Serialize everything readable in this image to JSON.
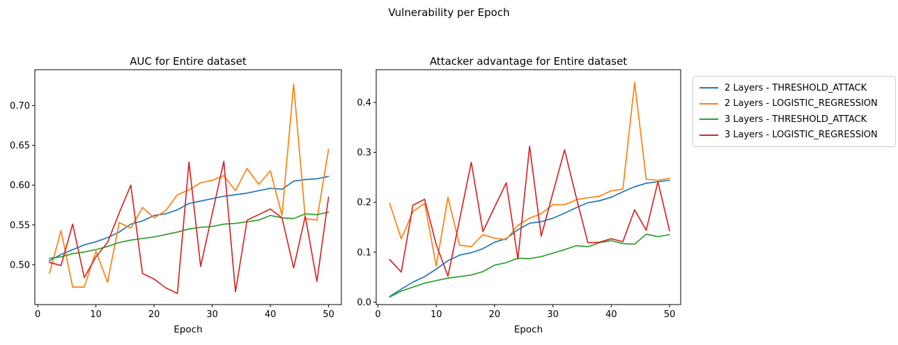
{
  "figure": {
    "suptitle": "Vulnerability per Epoch"
  },
  "colors": {
    "blue": "#1f77b4",
    "orange": "#ff7f0e",
    "green": "#2ca02c",
    "red": "#d62728",
    "axes": "#000000",
    "legend_border": "#cccccc"
  },
  "legend": {
    "entries": [
      {
        "label": "2 Layers - THRESHOLD_ATTACK",
        "color": "#1f77b4"
      },
      {
        "label": "2 Layers - LOGISTIC_REGRESSION",
        "color": "#ff7f0e"
      },
      {
        "label": "3 Layers - THRESHOLD_ATTACK",
        "color": "#2ca02c"
      },
      {
        "label": "3 Layers - LOGISTIC_REGRESSION",
        "color": "#d62728"
      }
    ]
  },
  "chart_data": [
    {
      "type": "line",
      "title": "AUC for Entire dataset",
      "xlabel": "Epoch",
      "ylabel": "",
      "grid": false,
      "legend_position": "outside-right-of-second-plot",
      "x": [
        2,
        4,
        6,
        8,
        10,
        12,
        14,
        16,
        18,
        20,
        22,
        24,
        26,
        28,
        30,
        32,
        34,
        36,
        38,
        40,
        42,
        44,
        46,
        48,
        50
      ],
      "xlim": [
        -0.5,
        52.2
      ],
      "ylim": [
        0.45,
        0.745
      ],
      "xticks": {
        "values": [
          0,
          10,
          20,
          30,
          40,
          50
        ],
        "labels": [
          "0",
          "10",
          "20",
          "30",
          "40",
          "50"
        ]
      },
      "yticks": {
        "values": [
          0.5,
          0.55,
          0.6,
          0.65,
          0.7
        ],
        "labels": [
          "0.50",
          "0.55",
          "0.60",
          "0.65",
          "0.70"
        ]
      },
      "series": [
        {
          "name": "2 Layers - THRESHOLD_ATTACK",
          "color": "#1f77b4",
          "values": [
            0.505,
            0.513,
            0.519,
            0.525,
            0.529,
            0.534,
            0.541,
            0.551,
            0.555,
            0.562,
            0.564,
            0.569,
            0.577,
            0.58,
            0.583,
            0.586,
            0.588,
            0.59,
            0.593,
            0.596,
            0.595,
            0.605,
            0.607,
            0.608,
            0.611
          ]
        },
        {
          "name": "2 Layers - LOGISTIC_REGRESSION",
          "color": "#ff7f0e",
          "values": [
            0.489,
            0.543,
            0.472,
            0.472,
            0.517,
            0.478,
            0.553,
            0.546,
            0.572,
            0.559,
            0.568,
            0.588,
            0.594,
            0.603,
            0.606,
            0.612,
            0.593,
            0.621,
            0.601,
            0.618,
            0.562,
            0.727,
            0.558,
            0.556,
            0.645
          ]
        },
        {
          "name": "3 Layers - THRESHOLD_ATTACK",
          "color": "#2ca02c",
          "values": [
            0.508,
            0.51,
            0.514,
            0.516,
            0.519,
            0.523,
            0.528,
            0.531,
            0.533,
            0.535,
            0.538,
            0.541,
            0.545,
            0.547,
            0.548,
            0.551,
            0.552,
            0.554,
            0.556,
            0.562,
            0.559,
            0.558,
            0.564,
            0.563,
            0.566
          ]
        },
        {
          "name": "3 Layers - LOGISTIC_REGRESSION",
          "color": "#d62728",
          "values": [
            0.503,
            0.499,
            0.551,
            0.484,
            0.51,
            0.528,
            0.565,
            0.6,
            0.489,
            0.482,
            0.471,
            0.464,
            0.629,
            0.498,
            0.564,
            0.63,
            0.466,
            0.556,
            0.563,
            0.57,
            0.559,
            0.496,
            0.561,
            0.479,
            0.585
          ]
        }
      ]
    },
    {
      "type": "line",
      "title": "Attacker advantage for Entire dataset",
      "xlabel": "Epoch",
      "ylabel": "",
      "grid": false,
      "x": [
        2,
        4,
        6,
        8,
        10,
        12,
        14,
        16,
        18,
        20,
        22,
        24,
        26,
        28,
        30,
        32,
        34,
        36,
        38,
        40,
        42,
        44,
        46,
        48,
        50
      ],
      "xlim": [
        -0.3,
        51.9
      ],
      "ylim": [
        -0.005,
        0.4655
      ],
      "xticks": {
        "values": [
          0,
          10,
          20,
          30,
          40,
          50
        ],
        "labels": [
          "0",
          "10",
          "20",
          "30",
          "40",
          "50"
        ]
      },
      "yticks": {
        "values": [
          0.0,
          0.1,
          0.2,
          0.3,
          0.4
        ],
        "labels": [
          "0.0",
          "0.1",
          "0.2",
          "0.3",
          "0.4"
        ]
      },
      "series": [
        {
          "name": "2 Layers - THRESHOLD_ATTACK",
          "color": "#1f77b4",
          "values": [
            0.011,
            0.026,
            0.04,
            0.051,
            0.066,
            0.083,
            0.094,
            0.099,
            0.107,
            0.12,
            0.127,
            0.145,
            0.158,
            0.161,
            0.168,
            0.178,
            0.189,
            0.199,
            0.203,
            0.21,
            0.221,
            0.231,
            0.238,
            0.241,
            0.244
          ]
        },
        {
          "name": "2 Layers - LOGISTIC_REGRESSION",
          "color": "#ff7f0e",
          "values": [
            0.198,
            0.127,
            0.181,
            0.198,
            0.072,
            0.21,
            0.114,
            0.111,
            0.135,
            0.128,
            0.125,
            0.154,
            0.168,
            0.177,
            0.195,
            0.195,
            0.205,
            0.209,
            0.212,
            0.223,
            0.226,
            0.44,
            0.246,
            0.244,
            0.248
          ]
        },
        {
          "name": "3 Layers - THRESHOLD_ATTACK",
          "color": "#2ca02c",
          "values": [
            0.01,
            0.022,
            0.03,
            0.038,
            0.043,
            0.048,
            0.051,
            0.054,
            0.061,
            0.074,
            0.079,
            0.088,
            0.087,
            0.091,
            0.098,
            0.105,
            0.113,
            0.111,
            0.119,
            0.123,
            0.117,
            0.116,
            0.136,
            0.131,
            0.135
          ]
        },
        {
          "name": "3 Layers - LOGISTIC_REGRESSION",
          "color": "#d62728",
          "values": [
            0.085,
            0.06,
            0.194,
            0.206,
            0.115,
            0.052,
            0.165,
            0.28,
            0.141,
            0.19,
            0.239,
            0.086,
            0.312,
            0.132,
            0.219,
            0.305,
            0.21,
            0.119,
            0.12,
            0.127,
            0.121,
            0.185,
            0.144,
            0.241,
            0.143
          ]
        }
      ]
    }
  ]
}
